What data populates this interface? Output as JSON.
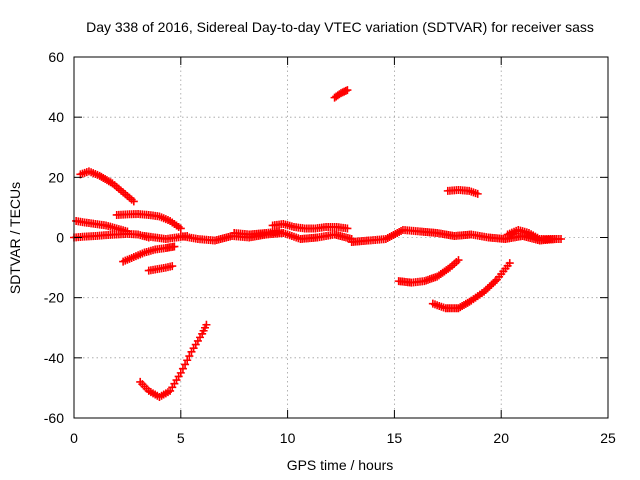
{
  "chart_data": {
    "type": "scatter",
    "title": "Day 338 of 2016, Sidereal Day-to-day VTEC variation (SDTVAR) for receiver sass",
    "xlabel": "GPS time / hours",
    "ylabel": "SDTVAR / TECUs",
    "xlim": [
      0,
      25
    ],
    "ylim": [
      -60,
      60
    ],
    "x_ticks": [
      0,
      5,
      10,
      15,
      20,
      25
    ],
    "y_ticks": [
      -60,
      -40,
      -20,
      0,
      20,
      40,
      60
    ],
    "x_tick_labels": [
      "0",
      "5",
      "10",
      "15",
      "20",
      "25"
    ],
    "y_tick_labels": [
      "-60",
      "-40",
      "-20",
      "0",
      "20",
      "40",
      "60"
    ],
    "grid": true,
    "legend": "none",
    "marker": "+",
    "series_color": "#ff0000",
    "series": [
      {
        "x": [
          0.3,
          0.7,
          1.2,
          1.8,
          2.3,
          2.8
        ],
        "y": [
          21,
          22,
          20.5,
          18,
          15,
          12
        ]
      },
      {
        "x": [
          0.1,
          0.5,
          1.0,
          1.5,
          2.0,
          2.5
        ],
        "y": [
          5.5,
          5,
          4.5,
          4,
          3,
          2
        ]
      },
      {
        "x": [
          0.0,
          0.5,
          1.0,
          1.5,
          2.0,
          2.5,
          3.0,
          3.5
        ],
        "y": [
          0,
          0.3,
          0.5,
          0.8,
          1,
          1.2,
          1,
          0
        ]
      },
      {
        "x": [
          2.0,
          2.5,
          3.0,
          3.5,
          4.0,
          4.5,
          5.0
        ],
        "y": [
          7.5,
          7.7,
          7.8,
          7.5,
          7,
          5.5,
          3
        ]
      },
      {
        "x": [
          3.3,
          3.8,
          4.3,
          4.8,
          5.3
        ],
        "y": [
          0.5,
          0,
          -0.5,
          0,
          0.5
        ]
      },
      {
        "x": [
          2.3,
          2.8,
          3.3,
          3.8,
          4.3,
          4.7
        ],
        "y": [
          -8,
          -6.5,
          -5,
          -4,
          -3.5,
          -3
        ]
      },
      {
        "x": [
          3.5,
          3.9,
          4.3,
          4.6
        ],
        "y": [
          -11,
          -10.5,
          -10,
          -9.5
        ]
      },
      {
        "x": [
          3.1,
          3.5,
          4.0,
          4.5,
          5.0,
          5.5,
          6.0,
          6.2
        ],
        "y": [
          -48,
          -51,
          -53,
          -51,
          -45,
          -38,
          -32,
          -29
        ]
      },
      {
        "x": [
          5.0,
          5.8,
          6.6,
          7.4,
          8.2,
          9.0,
          9.8,
          10.6,
          11.4,
          12.2,
          13.0
        ],
        "y": [
          0.5,
          -0.5,
          -1,
          0.5,
          0,
          1,
          1.5,
          -0.5,
          0,
          1,
          -0.5
        ]
      },
      {
        "x": [
          7.5,
          8.2,
          9.0,
          9.6
        ],
        "y": [
          1.5,
          1,
          1.5,
          2
        ]
      },
      {
        "x": [
          9.3,
          9.8,
          10.3,
          10.8,
          11.3,
          11.8,
          12.3,
          12.8
        ],
        "y": [
          4,
          4.5,
          3.5,
          3,
          3,
          3.5,
          3.5,
          3
        ]
      },
      {
        "x": [
          12.2,
          12.5,
          12.8
        ],
        "y": [
          46.5,
          48,
          49
        ]
      },
      {
        "x": [
          13.0,
          13.8,
          14.6,
          15.4,
          16.2,
          17.0,
          17.8,
          18.6,
          19.4,
          20.2,
          21.0,
          21.8,
          22.6
        ],
        "y": [
          -1.5,
          -1,
          -0.5,
          2.5,
          2,
          1.5,
          0.5,
          1,
          0,
          -0.5,
          0.5,
          -1,
          -0.5
        ]
      },
      {
        "x": [
          15.2,
          15.8,
          16.4,
          17.0,
          17.6,
          18.0
        ],
        "y": [
          -14.5,
          -15,
          -14.5,
          -13,
          -10,
          -7.5
        ]
      },
      {
        "x": [
          16.8,
          17.4,
          18.0,
          18.6,
          19.2,
          19.8,
          20.4
        ],
        "y": [
          -22,
          -23.5,
          -23.5,
          -21,
          -18,
          -14,
          -8.5
        ]
      },
      {
        "x": [
          17.5,
          18.0,
          18.5,
          18.9
        ],
        "y": [
          15.5,
          15.8,
          15.5,
          14.5
        ]
      },
      {
        "x": [
          20.3,
          20.8,
          21.3,
          21.8,
          22.3,
          22.8
        ],
        "y": [
          1,
          2.5,
          1.5,
          -0.5,
          -0.5,
          -0.5
        ]
      }
    ]
  }
}
